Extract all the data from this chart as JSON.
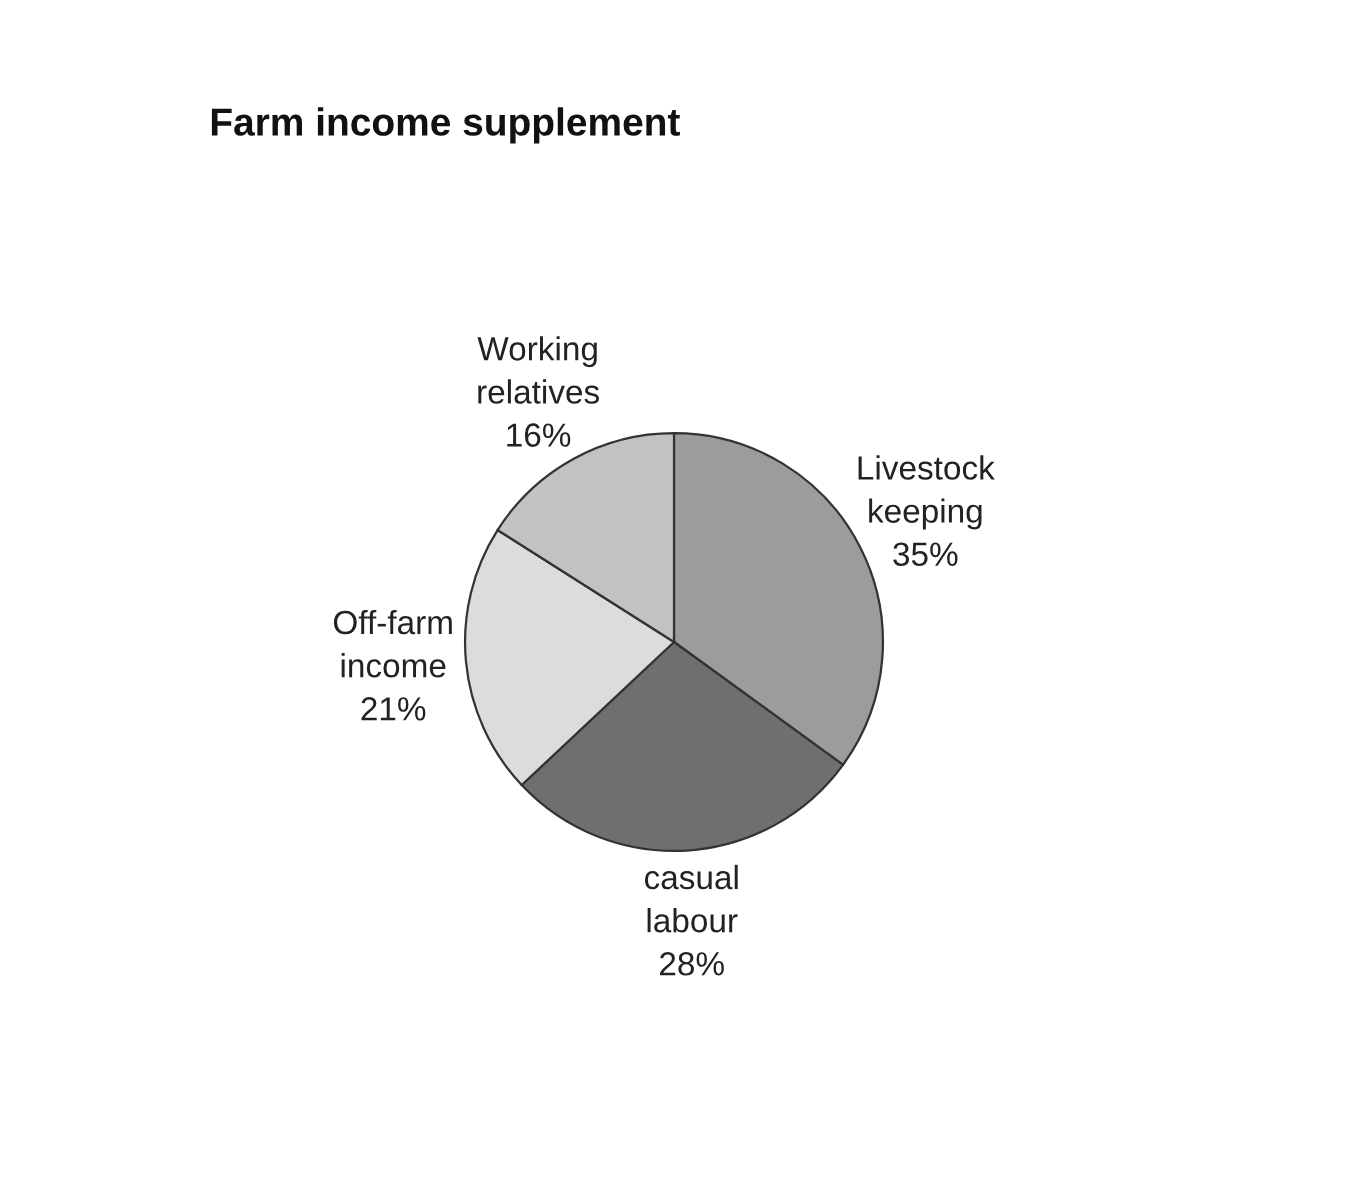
{
  "chart_data": {
    "type": "pie",
    "title": "Farm income supplement",
    "categories": [
      "Livestock keeping",
      "casual labour",
      "Off-farm income",
      "Working relatives"
    ],
    "values": [
      35,
      28,
      21,
      16
    ],
    "value_labels": [
      "35%",
      "28%",
      "21%",
      "16%"
    ],
    "colors": [
      "#9c9c9c",
      "#6f6f6f",
      "#dcdcdc",
      "#c2c2c2"
    ]
  }
}
